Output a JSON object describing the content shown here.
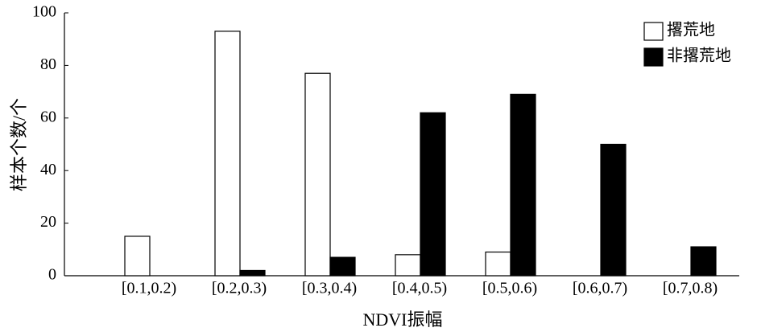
{
  "chart_data": {
    "type": "bar",
    "x_label": "NDVI振幅",
    "y_label": "样本个数/个",
    "categories": [
      "[0.1,0.2)",
      "[0.2,0.3)",
      "[0.3,0.4)",
      "[0.4,0.5)",
      "[0.5,0.6)",
      "[0.6,0.7)",
      "[0.7,0.8)"
    ],
    "series": [
      {
        "name": "撂荒地",
        "color": "#ffffff",
        "values": [
          15,
          93,
          77,
          8,
          9,
          0,
          0
        ]
      },
      {
        "name": "非撂荒地",
        "color": "#000000",
        "values": [
          0,
          2,
          7,
          62,
          69,
          50,
          11
        ]
      }
    ],
    "ylim": [
      0,
      100
    ],
    "yticks": [
      0,
      20,
      40,
      60,
      80,
      100
    ],
    "legend": "top-right",
    "grid": false
  }
}
